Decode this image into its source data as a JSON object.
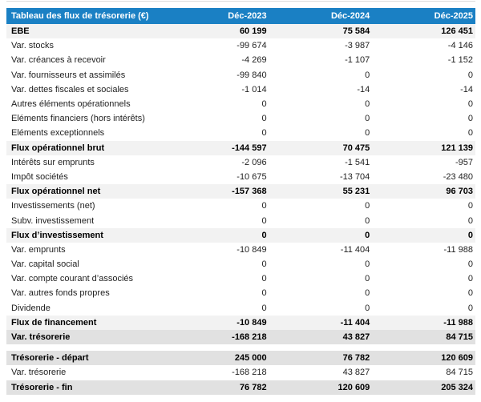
{
  "chart_data": {
    "type": "table",
    "title": "Tableau des flux de trésorerie (€)",
    "columns": [
      "Déc-2023",
      "Déc-2024",
      "Déc-2025"
    ],
    "rows": [
      {
        "label": "EBE",
        "values": [
          "60 199",
          "75 584",
          "126 451"
        ],
        "style": "subtotal"
      },
      {
        "label": "Var. stocks",
        "values": [
          "-99 674",
          "-3 987",
          "-4 146"
        ],
        "style": "normal"
      },
      {
        "label": "Var. créances à recevoir",
        "values": [
          "-4 269",
          "-1 107",
          "-1 152"
        ],
        "style": "normal"
      },
      {
        "label": "Var. fournisseurs et assimilés",
        "values": [
          "-99 840",
          "0",
          "0"
        ],
        "style": "normal"
      },
      {
        "label": "Var. dettes fiscales et sociales",
        "values": [
          "-1 014",
          "-14",
          "-14"
        ],
        "style": "normal"
      },
      {
        "label": "Autres éléments opérationnels",
        "values": [
          "0",
          "0",
          "0"
        ],
        "style": "normal"
      },
      {
        "label": "Eléments financiers (hors intérêts)",
        "values": [
          "0",
          "0",
          "0"
        ],
        "style": "normal"
      },
      {
        "label": "Eléments exceptionnels",
        "values": [
          "0",
          "0",
          "0"
        ],
        "style": "normal"
      },
      {
        "label": "Flux opérationnel brut",
        "values": [
          "-144 597",
          "70 475",
          "121 139"
        ],
        "style": "subtotal"
      },
      {
        "label": "Intérêts sur emprunts",
        "values": [
          "-2 096",
          "-1 541",
          "-957"
        ],
        "style": "normal"
      },
      {
        "label": "Impôt sociétés",
        "values": [
          "-10 675",
          "-13 704",
          "-23 480"
        ],
        "style": "normal"
      },
      {
        "label": "Flux opérationnel net",
        "values": [
          "-157 368",
          "55 231",
          "96 703"
        ],
        "style": "subtotal"
      },
      {
        "label": "Investissements (net)",
        "values": [
          "0",
          "0",
          "0"
        ],
        "style": "normal"
      },
      {
        "label": "Subv. investissement",
        "values": [
          "0",
          "0",
          "0"
        ],
        "style": "normal"
      },
      {
        "label": "Flux d’investissement",
        "values": [
          "0",
          "0",
          "0"
        ],
        "style": "subtotal"
      },
      {
        "label": "Var. emprunts",
        "values": [
          "-10 849",
          "-11 404",
          "-11 988"
        ],
        "style": "normal"
      },
      {
        "label": "Var. capital social",
        "values": [
          "0",
          "0",
          "0"
        ],
        "style": "normal"
      },
      {
        "label": "Var. compte courant d’associés",
        "values": [
          "0",
          "0",
          "0"
        ],
        "style": "normal"
      },
      {
        "label": "Var. autres fonds propres",
        "values": [
          "0",
          "0",
          "0"
        ],
        "style": "normal"
      },
      {
        "label": "Dividende",
        "values": [
          "0",
          "0",
          "0"
        ],
        "style": "normal"
      },
      {
        "label": "Flux de financement",
        "values": [
          "-10 849",
          "-11 404",
          "-11 988"
        ],
        "style": "subtotal"
      },
      {
        "label": "Var. trésorerie",
        "values": [
          "-168 218",
          "43 827",
          "84 715"
        ],
        "style": "total"
      },
      {
        "label": "",
        "values": [],
        "style": "spacer"
      },
      {
        "label": "Trésorerie - départ",
        "values": [
          "245 000",
          "76 782",
          "120 609"
        ],
        "style": "total"
      },
      {
        "label": "Var. trésorerie",
        "values": [
          "-168 218",
          "43 827",
          "84 715"
        ],
        "style": "normal"
      },
      {
        "label": "Trésorerie - fin",
        "values": [
          "76 782",
          "120 609",
          "205 324"
        ],
        "style": "total"
      }
    ]
  },
  "colors": {
    "header_bg": "#1a80c4",
    "header_text": "#ffffff",
    "subtotal_row_bg": "#f2f2f2",
    "total_row_bg": "#e1e1e1",
    "row_text": "#1f1f1f"
  }
}
